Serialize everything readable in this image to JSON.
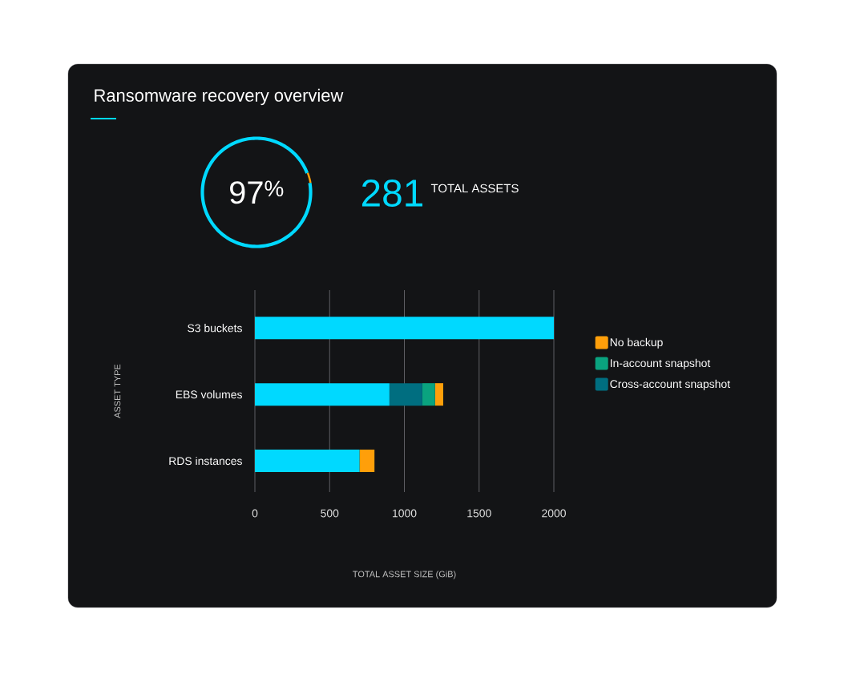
{
  "chart_data": [
    {
      "type": "donut",
      "title": "Ransomware recovery overview",
      "categories": [
        null,
        null
      ],
      "values": [
        97,
        3
      ],
      "colors": [
        "#00d9ff",
        "#ff9f0a"
      ],
      "value_labels": [
        "97$^{%}$",
        null
      ]
    },
    {
      "type": "other",
      "annotations": [
        "281",
        "TOTAL ASSETS"
      ]
    },
    {
      "type": "bar",
      "orientation": "horizontal",
      "stacked": true,
      "categories": [
        "S3 buckets",
        "EBS volumes",
        "RDS instances"
      ],
      "series": [
        {
          "color": "#00d9ff",
          "values": [
            2000,
            900,
            700
          ]
        },
        {
          "name": "Cross-account snapshot",
          "color": "#006e80",
          "values": [
            0,
            220,
            0
          ]
        },
        {
          "name": "In-account snapshot",
          "color": "#0aa37f",
          "values": [
            0,
            85,
            0
          ]
        },
        {
          "name": "No backup",
          "color": "#ff9f0a",
          "values": [
            0,
            55,
            100
          ]
        }
      ],
      "xlim": [
        0,
        2000
      ],
      "xticks": [
        0,
        500,
        1000,
        1500,
        2000
      ],
      "grid": "x",
      "legend": "right",
      "xlabel": "TOTAL ASSET SIZE (GiB)",
      "ylabel": "ASSET TYPE"
    }
  ]
}
